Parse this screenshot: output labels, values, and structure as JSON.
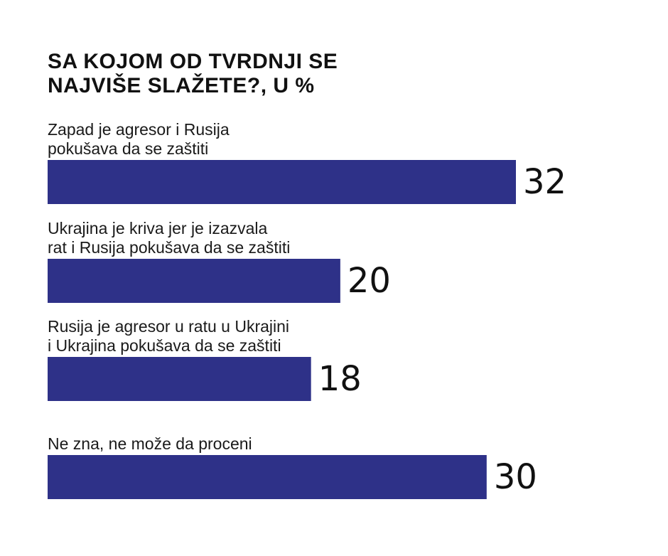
{
  "chart_data": {
    "type": "bar",
    "orientation": "horizontal",
    "title_lines": [
      "SA KOJOM OD TVRDNJI SE",
      "NAJVIŠE SLAŽETE?, U %"
    ],
    "categories": [
      [
        "Zapad je agresor i Rusija",
        "pokušava da se zaštiti"
      ],
      [
        "Ukrajina je kriva jer je izazvala",
        "rat i Rusija pokušava da se zaštiti"
      ],
      [
        "Rusija je agresor u ratu u Ukrajini",
        "i Ukrajina pokušava da se zaštiti"
      ],
      [
        "Ne zna, ne može da proceni"
      ]
    ],
    "values": [
      32,
      20,
      18,
      30
    ],
    "xlim": [
      0,
      32
    ],
    "bar_color": "#2e3188",
    "grid": false,
    "legend": "none"
  }
}
